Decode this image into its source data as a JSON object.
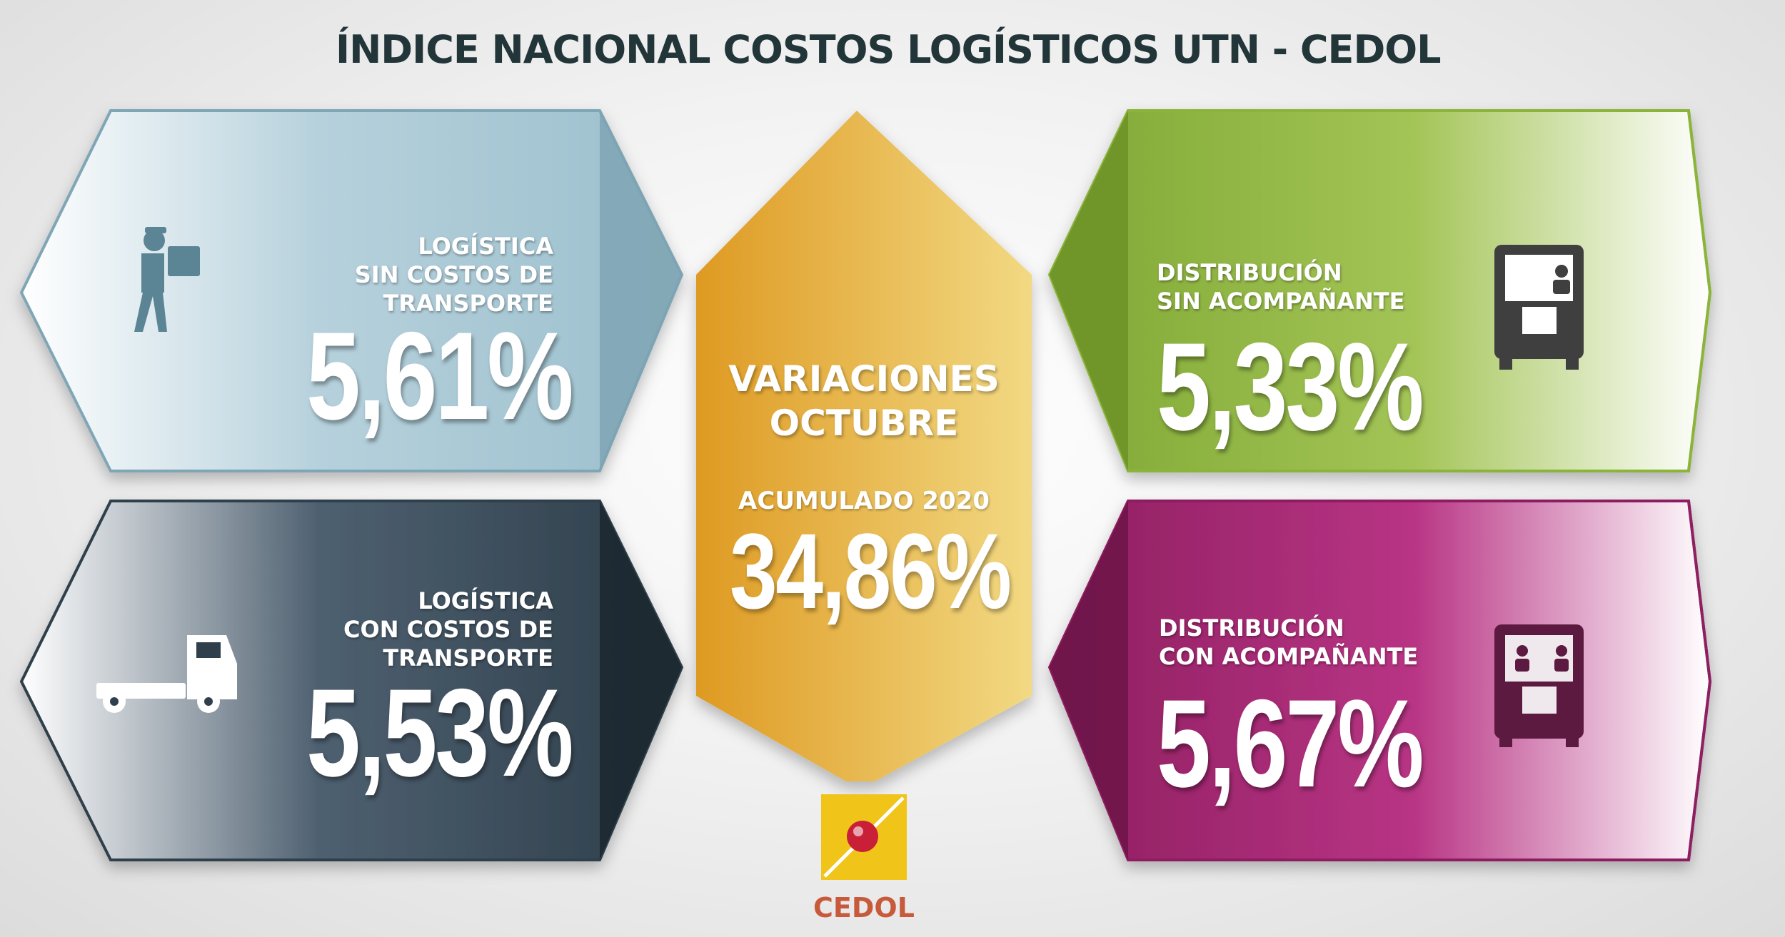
{
  "title": "ÍNDICE NACIONAL COSTOS LOGÍSTICOS UTN - CEDOL",
  "center": {
    "title": "VARIACIONES\nOCTUBRE",
    "subtitle": "ACUMULADO 2020",
    "value": "34,86%",
    "color": "#e9b23c"
  },
  "panels": {
    "top_left": {
      "label": "LOGÍSTICA\nSIN COSTOS DE\nTRANSPORTE",
      "value": "5,61%",
      "icon": "delivery-person-icon",
      "color": "#8fb3c2"
    },
    "bottom_left": {
      "label": "LOGÍSTICA\nCON COSTOS DE\nTRANSPORTE",
      "value": "5,53%",
      "icon": "truck-icon",
      "color": "#2f3f4c"
    },
    "top_right": {
      "label": "DISTRIBUCIÓN\nSIN ACOMPAÑANTE",
      "value": "5,33%",
      "icon": "bus-one-driver-icon",
      "color": "#8bb43a"
    },
    "bottom_right": {
      "label": "DISTRIBUCIÓN\nCON ACOMPAÑANTE",
      "value": "5,67%",
      "icon": "bus-two-persons-icon",
      "color": "#a82a74"
    }
  },
  "logo": {
    "text": "CEDOL",
    "color": "#f0c419"
  }
}
